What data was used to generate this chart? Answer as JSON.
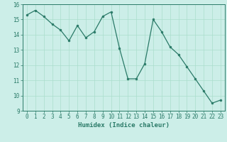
{
  "x": [
    0,
    1,
    2,
    3,
    4,
    5,
    6,
    7,
    8,
    9,
    10,
    11,
    12,
    13,
    14,
    15,
    16,
    17,
    18,
    19,
    20,
    21,
    22,
    23
  ],
  "y": [
    15.3,
    15.6,
    15.2,
    14.7,
    14.3,
    13.6,
    14.6,
    13.8,
    14.2,
    15.2,
    15.5,
    13.1,
    11.1,
    11.1,
    12.1,
    15.0,
    14.2,
    13.2,
    12.7,
    11.9,
    11.1,
    10.3,
    9.5,
    9.7
  ],
  "xlabel": "Humidex (Indice chaleur)",
  "ylim": [
    9,
    16
  ],
  "xlim_min": -0.5,
  "xlim_max": 23.5,
  "yticks": [
    9,
    10,
    11,
    12,
    13,
    14,
    15,
    16
  ],
  "xticks": [
    0,
    1,
    2,
    3,
    4,
    5,
    6,
    7,
    8,
    9,
    10,
    11,
    12,
    13,
    14,
    15,
    16,
    17,
    18,
    19,
    20,
    21,
    22,
    23
  ],
  "line_color": "#2a7a68",
  "marker_color": "#2a7a68",
  "bg_color": "#cceee8",
  "grid_color_major": "#aaddcc",
  "axis_color": "#2a7a68",
  "label_color": "#2a7a68",
  "tick_fontsize": 5.5,
  "xlabel_fontsize": 6.5
}
